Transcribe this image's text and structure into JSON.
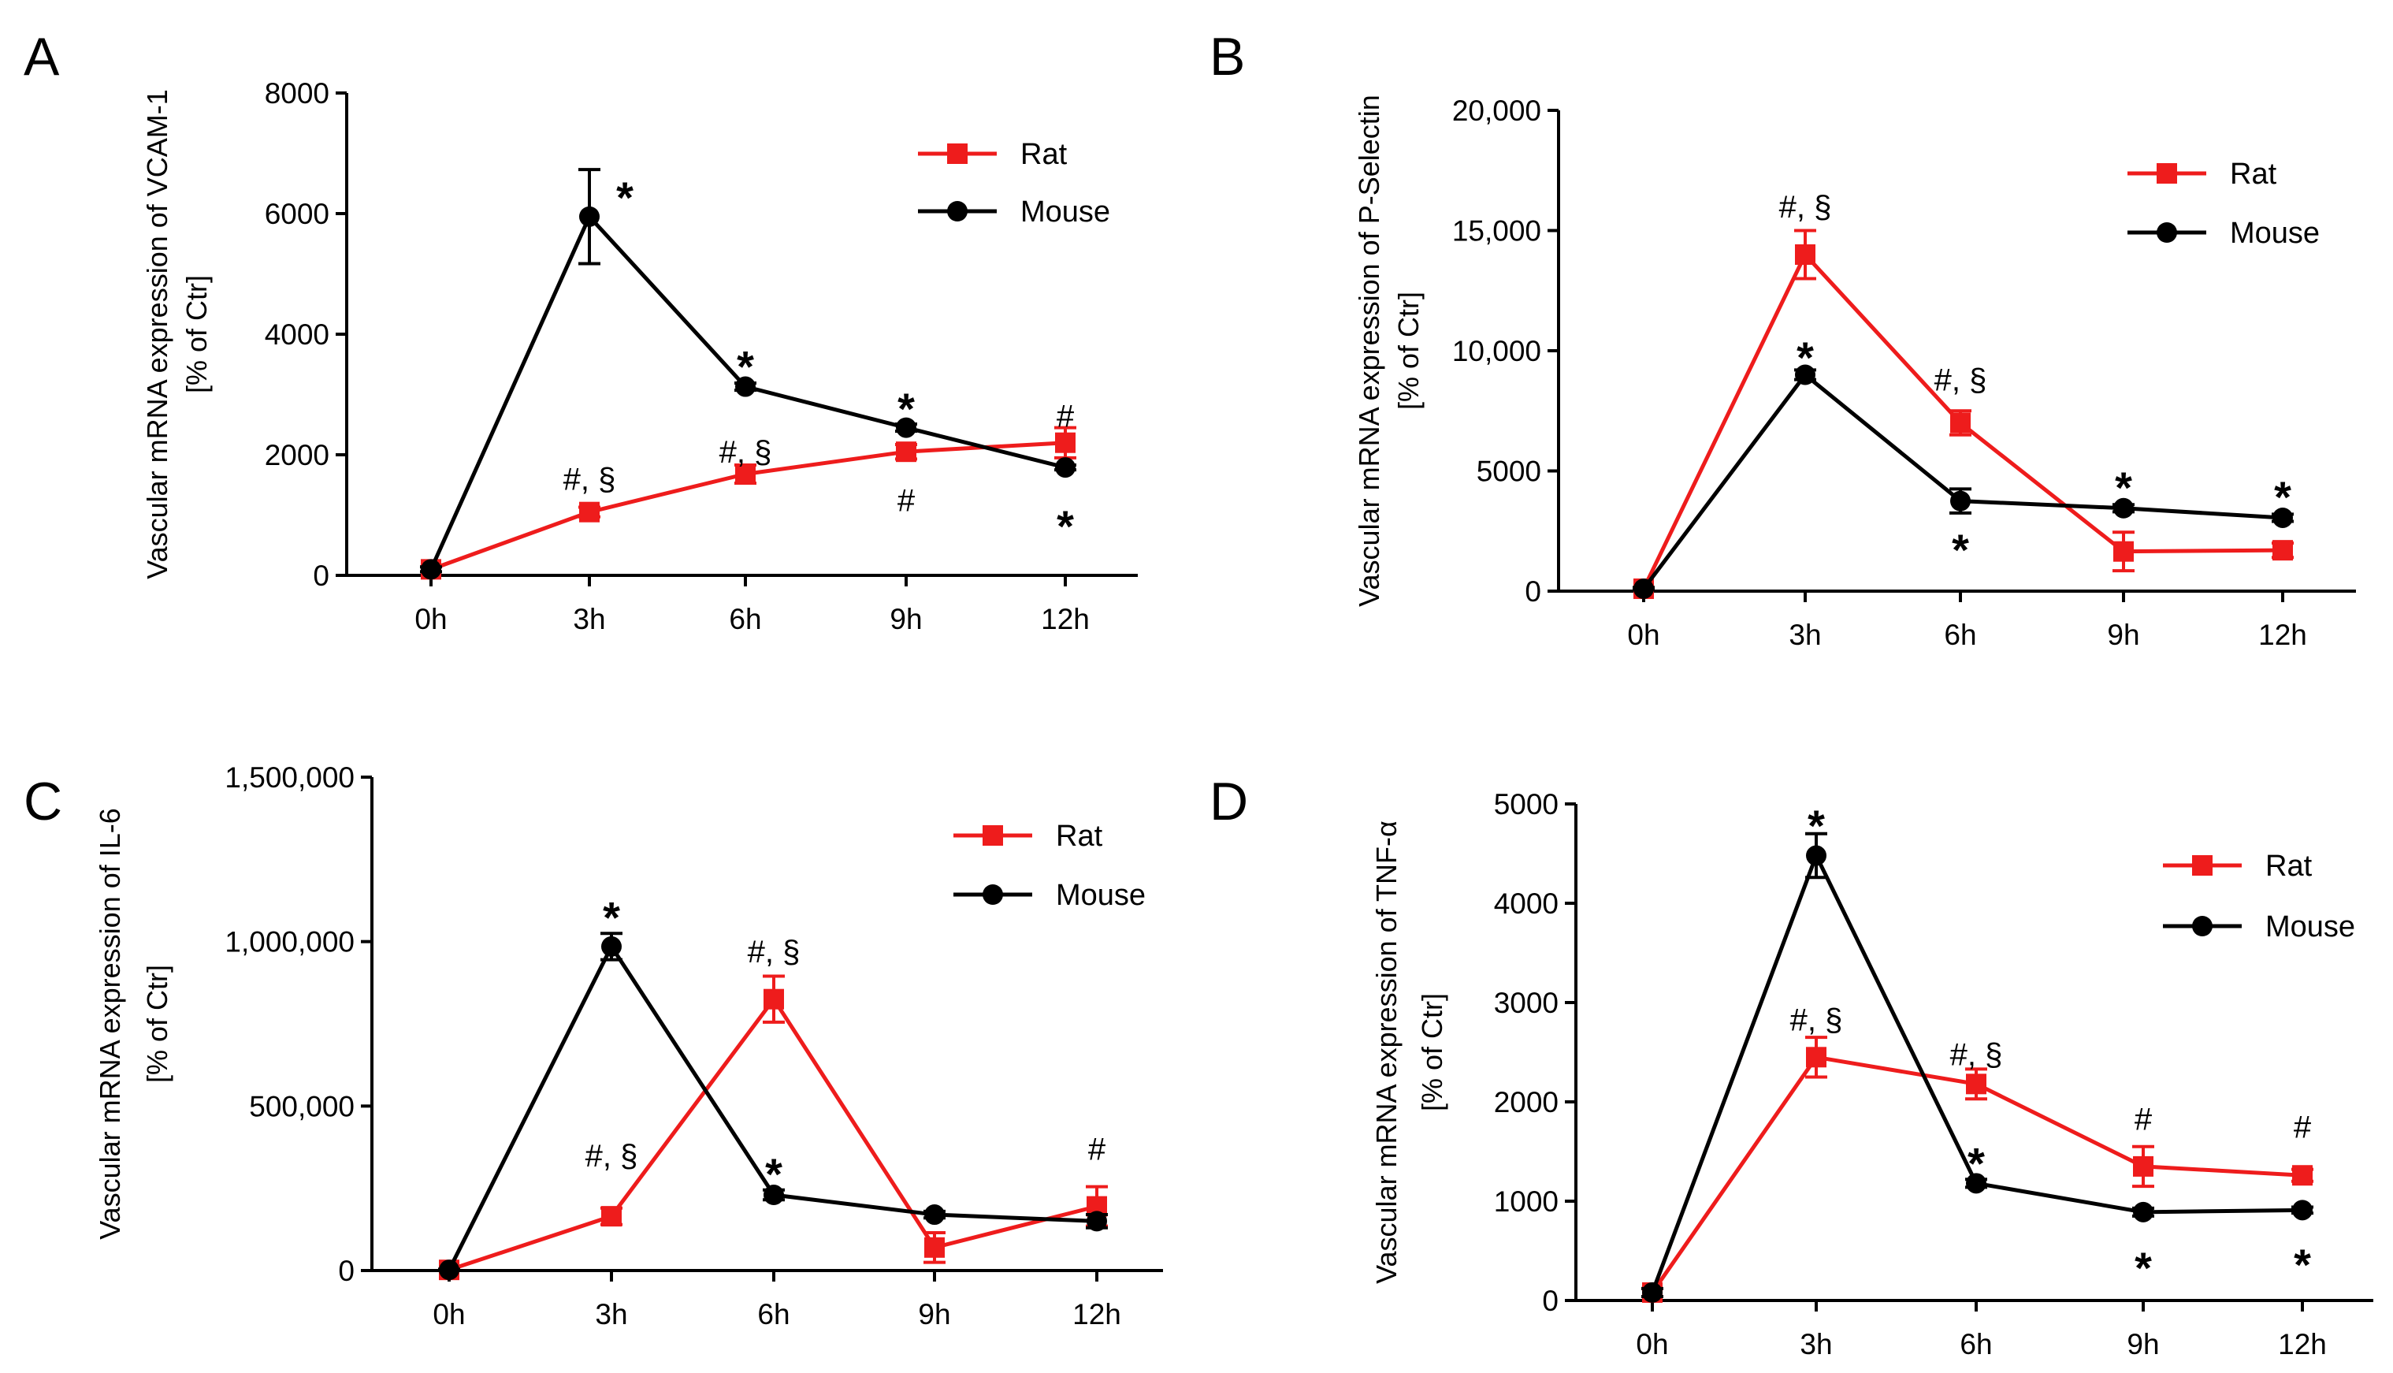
{
  "chart_data": [
    {
      "type": "line",
      "panel": "A",
      "title": "",
      "xlabel": "",
      "ylabel": "Vascular mRNA expression of VCAM-1",
      "ylabel2": "[% of Ctr]",
      "categories": [
        "0h",
        "3h",
        "6h",
        "9h",
        "12h"
      ],
      "ylim": [
        0,
        8000
      ],
      "yticks": [
        0,
        2000,
        4000,
        6000,
        8000
      ],
      "ytick_labels": [
        "0",
        "2000",
        "4000",
        "6000",
        "8000"
      ],
      "series": [
        {
          "name": "Rat",
          "color": "#ee1c1c",
          "marker": "square",
          "values": [
            100,
            1050,
            1680,
            2050,
            2200
          ],
          "errors": [
            40,
            80,
            150,
            120,
            250
          ]
        },
        {
          "name": "Mouse",
          "color": "#000000",
          "marker": "circle",
          "values": [
            100,
            5950,
            3130,
            2450,
            1790
          ],
          "errors": [
            40,
            780,
            60,
            60,
            40
          ]
        }
      ],
      "annotations": [
        {
          "text": "*",
          "category": "3h",
          "y": 6300,
          "kind": "star"
        },
        {
          "text": "*",
          "category": "6h",
          "y": 3500,
          "kind": "star"
        },
        {
          "text": "*",
          "category": "9h",
          "y": 2800,
          "kind": "star"
        },
        {
          "text": "*",
          "category": "12h",
          "y": 850,
          "kind": "star"
        },
        {
          "text": "#, §",
          "category": "3h",
          "y": 1600,
          "kind": "text"
        },
        {
          "text": "#, §",
          "category": "6h",
          "y": 2050,
          "kind": "text"
        },
        {
          "text": "#",
          "category": "9h",
          "y": 1250,
          "kind": "text"
        },
        {
          "text": "#",
          "category": "12h",
          "y": 2650,
          "kind": "text"
        }
      ]
    },
    {
      "type": "line",
      "panel": "B",
      "title": "",
      "xlabel": "",
      "ylabel": "Vascular mRNA expression of P-Selectin",
      "ylabel2": "[% of Ctr]",
      "categories": [
        "0h",
        "3h",
        "6h",
        "9h",
        "12h"
      ],
      "ylim": [
        0,
        20000
      ],
      "yticks": [
        0,
        5000,
        10000,
        15000,
        20000
      ],
      "ytick_labels": [
        "0",
        "5000",
        "10,000",
        "15,000",
        "20,000"
      ],
      "series": [
        {
          "name": "Rat",
          "color": "#ee1c1c",
          "marker": "square",
          "values": [
            100,
            14000,
            7000,
            1650,
            1700
          ],
          "errors": [
            50,
            1000,
            500,
            800,
            300
          ]
        },
        {
          "name": "Mouse",
          "color": "#000000",
          "marker": "circle",
          "values": [
            100,
            9000,
            3750,
            3450,
            3050
          ],
          "errors": [
            50,
            200,
            500,
            150,
            150
          ]
        }
      ],
      "annotations": [
        {
          "text": "*",
          "category": "3h",
          "y": 9800,
          "kind": "star"
        },
        {
          "text": "*",
          "category": "6h",
          "y": 1800,
          "kind": "star"
        },
        {
          "text": "*",
          "category": "9h",
          "y": 4400,
          "kind": "star"
        },
        {
          "text": "*",
          "category": "12h",
          "y": 4000,
          "kind": "star"
        },
        {
          "text": "#, §",
          "category": "3h",
          "y": 16000,
          "kind": "text"
        },
        {
          "text": "#, §",
          "category": "6h",
          "y": 8800,
          "kind": "text"
        }
      ]
    },
    {
      "type": "line",
      "panel": "C",
      "title": "",
      "xlabel": "",
      "ylabel": "Vascular mRNA expression of IL-6",
      "ylabel2": "[% of Ctr]",
      "categories": [
        "0h",
        "3h",
        "6h",
        "9h",
        "12h"
      ],
      "ylim": [
        0,
        1500000
      ],
      "yticks": [
        0,
        500000,
        1000000,
        1500000
      ],
      "ytick_labels": [
        "0",
        "500,000",
        "1,000,000",
        "1,500,000"
      ],
      "series": [
        {
          "name": "Rat",
          "color": "#ee1c1c",
          "marker": "square",
          "values": [
            2000,
            165000,
            825000,
            70000,
            195000
          ],
          "errors": [
            2000,
            25000,
            70000,
            45000,
            60000
          ]
        },
        {
          "name": "Mouse",
          "color": "#000000",
          "marker": "circle",
          "values": [
            2000,
            985000,
            230000,
            170000,
            150000
          ],
          "errors": [
            2000,
            40000,
            15000,
            10000,
            20000
          ]
        }
      ],
      "annotations": [
        {
          "text": "*",
          "category": "3h",
          "y": 1080000,
          "kind": "star"
        },
        {
          "text": "*",
          "category": "6h",
          "y": 300000,
          "kind": "star"
        },
        {
          "text": "#, §",
          "category": "3h",
          "y": 350000,
          "kind": "text"
        },
        {
          "text": "#, §",
          "category": "6h",
          "y": 970000,
          "kind": "text"
        },
        {
          "text": "#",
          "category": "12h",
          "y": 370000,
          "kind": "text"
        }
      ]
    },
    {
      "type": "line",
      "panel": "D",
      "title": "",
      "xlabel": "",
      "ylabel": "Vascular mRNA expression of TNF-α",
      "ylabel2": "[% of Ctr]",
      "categories": [
        "0h",
        "3h",
        "6h",
        "9h",
        "12h"
      ],
      "ylim": [
        0,
        5000
      ],
      "yticks": [
        0,
        1000,
        2000,
        3000,
        4000,
        5000
      ],
      "ytick_labels": [
        "0",
        "1000",
        "2000",
        "3000",
        "4000",
        "5000"
      ],
      "series": [
        {
          "name": "Rat",
          "color": "#ee1c1c",
          "marker": "square",
          "values": [
            80,
            2450,
            2180,
            1350,
            1260
          ],
          "errors": [
            40,
            200,
            150,
            200,
            60
          ]
        },
        {
          "name": "Mouse",
          "color": "#000000",
          "marker": "circle",
          "values": [
            80,
            4480,
            1180,
            890,
            910
          ],
          "errors": [
            40,
            220,
            40,
            40,
            30
          ]
        }
      ],
      "annotations": [
        {
          "text": "*",
          "category": "3h",
          "y": 4800,
          "kind": "star"
        },
        {
          "text": "*",
          "category": "6h",
          "y": 1400,
          "kind": "star"
        },
        {
          "text": "*",
          "category": "9h",
          "y": 350,
          "kind": "star"
        },
        {
          "text": "*",
          "category": "12h",
          "y": 380,
          "kind": "star"
        },
        {
          "text": "#, §",
          "category": "3h",
          "y": 2830,
          "kind": "text"
        },
        {
          "text": "#, §",
          "category": "6h",
          "y": 2480,
          "kind": "text"
        },
        {
          "text": "#",
          "category": "9h",
          "y": 1830,
          "kind": "text"
        },
        {
          "text": "#",
          "category": "12h",
          "y": 1750,
          "kind": "text"
        }
      ]
    }
  ]
}
